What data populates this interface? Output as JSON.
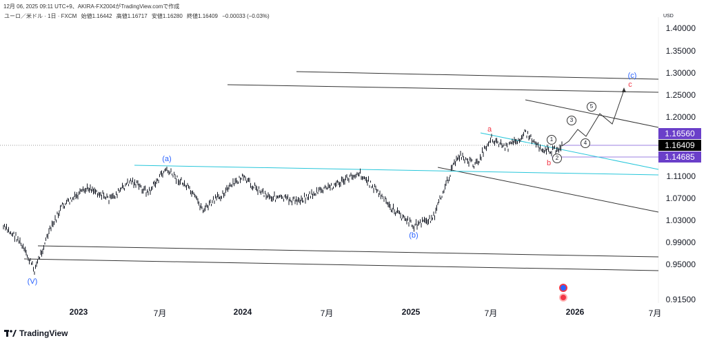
{
  "caption": "12月 06, 2025 09:11 UTC+9、AKIRA-FX2004がTradingView.comで作成",
  "legend": {
    "symbol": "ユーロ／米ドル · 1日 · FXCM",
    "open": "始値1.16442",
    "high": "高値1.16717",
    "low": "安値1.16280",
    "close": "終値1.16409",
    "change": "−0.00033 (−0.03%)"
  },
  "currency": "USD",
  "y_axis": [
    "1.40000",
    "1.35000",
    "1.30000",
    "1.25000",
    "1.20000",
    "1.11000",
    "1.07000",
    "1.03000",
    "0.99000",
    "0.95000",
    "0.91500"
  ],
  "price_badges": [
    {
      "value": "1.16560",
      "color": "#6a3fc9"
    },
    {
      "value": "1.16409",
      "color": "#000000"
    },
    {
      "value": "1.14685",
      "color": "#6a3fc9"
    }
  ],
  "x_axis": [
    {
      "label": "2023",
      "year": true
    },
    {
      "label": "7月",
      "year": false
    },
    {
      "label": "2024",
      "year": true
    },
    {
      "label": "7月",
      "year": false
    },
    {
      "label": "2025",
      "year": true
    },
    {
      "label": "7月",
      "year": false
    },
    {
      "label": "2026",
      "year": true
    },
    {
      "label": "7月",
      "year": false
    }
  ],
  "wave_labels": {
    "V": "(V)",
    "a_big": "(a)",
    "b_big": "(b)",
    "c_big": "(c)",
    "a": "a",
    "b": "b",
    "c": "c",
    "w1": "1",
    "w2": "2",
    "w3": "3",
    "w4": "4",
    "w5": "5"
  },
  "colors": {
    "blue": "#2962ff",
    "red": "#f23645",
    "cyan": "#26c6da",
    "purple": "#6a3fc9"
  },
  "brand": "TradingView"
}
